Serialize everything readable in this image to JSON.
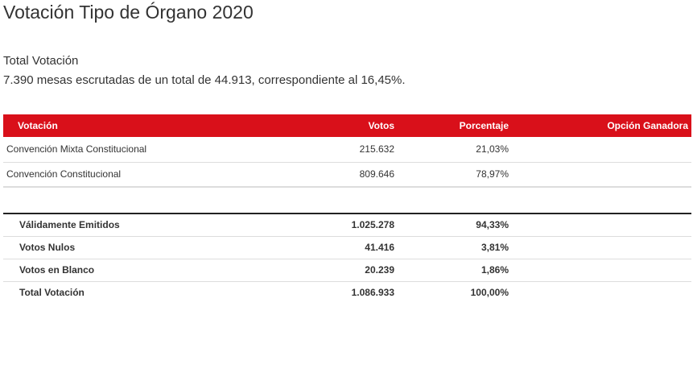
{
  "header": {
    "title": "Votación Tipo de Órgano 2020",
    "subtitle": "Total Votación",
    "summary": "7.390 mesas escrutadas de un total de 44.913, correspondiente al 16,45%."
  },
  "results": {
    "columns": [
      "Votación",
      "Votos",
      "Porcentaje",
      "Opción Ganadora"
    ],
    "rows": [
      {
        "label": "Convención Mixta Constitucional",
        "votes": "215.632",
        "percent": "21,03%",
        "winner": ""
      },
      {
        "label": "Convención Constitucional",
        "votes": "809.646",
        "percent": "78,97%",
        "winner": ""
      }
    ]
  },
  "totals": [
    {
      "label": "Válidamente Emitidos",
      "votes": "1.025.278",
      "percent": "94,33%"
    },
    {
      "label": "Votos Nulos",
      "votes": "41.416",
      "percent": "3,81%"
    },
    {
      "label": "Votos en Blanco",
      "votes": "20.239",
      "percent": "1,86%"
    },
    {
      "label": "Total Votación",
      "votes": "1.086.933",
      "percent": "100,00%"
    }
  ],
  "colors": {
    "header_bg": "#d9101a",
    "header_text": "#ffffff"
  }
}
